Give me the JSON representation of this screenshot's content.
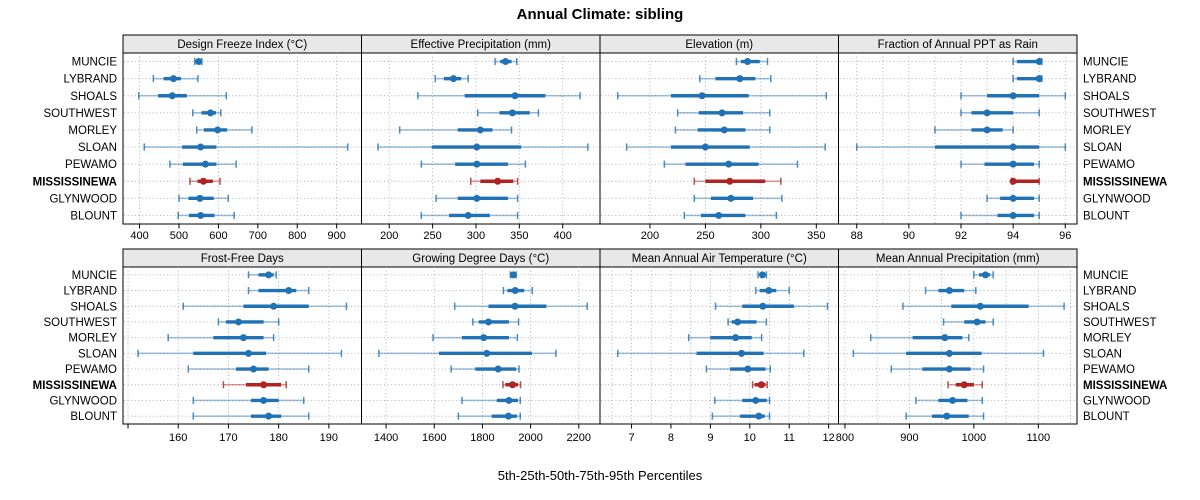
{
  "title": "Annual Climate: sibling",
  "caption": "5th-25th-50th-75th-95th Percentiles",
  "sites": [
    "MUNCIE",
    "LYBRAND",
    "SHOALS",
    "SOUTHWEST",
    "MORLEY",
    "SLOAN",
    "PEWAMO",
    "MISSISSINEWA",
    "GLYNWOOD",
    "BLOUNT"
  ],
  "highlight_site": "MISSISSINEWA",
  "colors": {
    "series_blue": "#2171b5",
    "series_blue_light": "rgba(33,113,181,0.42)",
    "highlight_red": "#b22222",
    "highlight_red_light": "rgba(178,34,34,0.45)",
    "strip_bg": "#e8e8e8",
    "panel_border": "#000000",
    "grid": "#a8a8a8"
  },
  "chart_data": {
    "type": "dotplot-percentiles",
    "percentiles": [
      5,
      25,
      50,
      75,
      95
    ],
    "grid_style": "dotted",
    "legend_position": "none",
    "panels": [
      {
        "id": "design-freeze-index",
        "title": "Design Freeze Index (°C)",
        "xlim": [
          358,
          963
        ],
        "ticks": [
          400,
          500,
          600,
          700,
          800,
          900
        ],
        "tick_labels": [
          "400",
          "500",
          "600",
          "700",
          "800",
          "900"
        ],
        "grid": [
          400,
          500,
          600,
          700,
          800,
          900
        ],
        "values": [
          [
            540,
            545,
            550,
            554,
            558
          ],
          [
            435,
            461,
            486,
            505,
            548
          ],
          [
            398,
            447,
            483,
            520,
            620
          ],
          [
            535,
            557,
            580,
            594,
            606
          ],
          [
            545,
            563,
            598,
            622,
            685
          ],
          [
            412,
            508,
            555,
            595,
            928
          ],
          [
            477,
            510,
            567,
            595,
            645
          ],
          [
            528,
            547,
            562,
            586,
            604
          ],
          [
            500,
            524,
            553,
            588,
            625
          ],
          [
            498,
            525,
            555,
            590,
            640
          ]
        ]
      },
      {
        "id": "effective-precipitation",
        "title": "Effective Precipitation (mm)",
        "xlim": [
          168,
          443
        ],
        "ticks": [
          200,
          250,
          300,
          350,
          400
        ],
        "tick_labels": [
          "200",
          "250",
          "300",
          "350",
          "400"
        ],
        "grid": [
          200,
          250,
          300,
          350,
          400
        ],
        "values": [
          [
            322,
            328,
            334,
            341,
            347
          ],
          [
            253,
            263,
            274,
            283,
            291
          ],
          [
            233,
            287,
            345,
            380,
            420
          ],
          [
            302,
            327,
            342,
            362,
            372
          ],
          [
            212,
            279,
            305,
            319,
            341
          ],
          [
            187,
            249,
            301,
            352,
            429
          ],
          [
            237,
            276,
            301,
            337,
            357
          ],
          [
            294,
            305,
            325,
            343,
            348
          ],
          [
            254,
            279,
            301,
            337,
            348
          ],
          [
            237,
            269,
            291,
            316,
            348
          ]
        ]
      },
      {
        "id": "elevation",
        "title": "Elevation (m)",
        "xlim": [
          155,
          370
        ],
        "ticks": [
          200,
          250,
          300,
          350
        ],
        "tick_labels": [
          "200",
          "250",
          "300",
          "350"
        ],
        "grid": [
          200,
          250,
          300,
          350
        ],
        "values": [
          [
            278,
            282,
            288,
            299,
            306
          ],
          [
            245,
            259,
            281,
            295,
            309
          ],
          [
            171,
            219,
            247,
            289,
            359
          ],
          [
            225,
            244,
            265,
            284,
            308
          ],
          [
            223,
            243,
            267,
            286,
            308
          ],
          [
            179,
            219,
            250,
            290,
            358
          ],
          [
            213,
            232,
            271,
            298,
            333
          ],
          [
            240,
            250,
            272,
            304,
            318
          ],
          [
            240,
            255,
            273,
            293,
            319
          ],
          [
            231,
            246,
            262,
            286,
            314
          ]
        ]
      },
      {
        "id": "fraction-annual-ppt-as-rain",
        "title": "Fraction of Annual PPT as Rain",
        "xlim": [
          87.3,
          96.45
        ],
        "ticks": [
          88,
          90,
          92,
          94,
          96
        ],
        "tick_labels": [
          "88",
          "90",
          "92",
          "94",
          "96"
        ],
        "grid": [
          88,
          89,
          90,
          91,
          92,
          93,
          94,
          95,
          96
        ],
        "values": [
          [
            94,
            94.15,
            95,
            95,
            95.1
          ],
          [
            94,
            94.15,
            95,
            95,
            95.1
          ],
          [
            92,
            93,
            94,
            95,
            96
          ],
          [
            92,
            92.4,
            93,
            94,
            95
          ],
          [
            91,
            92.4,
            93,
            93.6,
            94
          ],
          [
            88,
            91,
            94,
            95,
            96
          ],
          [
            92,
            92.9,
            94,
            94.8,
            95
          ],
          [
            93.95,
            94,
            94,
            95,
            95
          ],
          [
            93,
            93.5,
            94,
            94.8,
            95
          ],
          [
            92,
            93.4,
            94,
            94.8,
            95
          ]
        ]
      },
      {
        "id": "frost-free-days",
        "title": "Frost-Free Days",
        "xlim": [
          149,
          196.5
        ],
        "ticks": [
          150,
          160,
          170,
          180,
          190
        ],
        "tick_labels": [
          "",
          "160",
          "170",
          "180",
          "190"
        ],
        "grid": [
          150,
          160,
          170,
          180,
          190
        ],
        "values": [
          [
            174,
            176,
            178,
            179,
            179.5
          ],
          [
            174,
            176,
            182,
            183.5,
            186
          ],
          [
            161,
            173,
            179,
            186,
            193.5
          ],
          [
            168,
            169.5,
            172,
            177,
            180
          ],
          [
            158,
            167,
            173,
            177,
            179
          ],
          [
            152,
            163,
            174,
            177.5,
            192.5
          ],
          [
            162,
            171.5,
            175,
            178,
            186
          ],
          [
            169,
            173.5,
            177,
            180.5,
            181.5
          ],
          [
            163,
            174.5,
            177,
            180,
            185
          ],
          [
            163,
            174.5,
            178,
            180.5,
            186
          ]
        ]
      },
      {
        "id": "growing-degree-days",
        "title": "Growing Degree Days (°C)",
        "xlim": [
          1298,
          2288
        ],
        "ticks": [
          1400,
          1600,
          1800,
          2000,
          2200
        ],
        "tick_labels": [
          "1400",
          "1600",
          "1800",
          "2000",
          "2200"
        ],
        "grid": [
          1400,
          1600,
          1800,
          2000,
          2200
        ],
        "values": [
          [
            1916,
            1922,
            1928,
            1934,
            1940
          ],
          [
            1887,
            1904,
            1936,
            1973,
            2007
          ],
          [
            1685,
            1825,
            1935,
            2065,
            2235
          ],
          [
            1760,
            1785,
            1825,
            1910,
            1950
          ],
          [
            1595,
            1715,
            1805,
            1910,
            1945
          ],
          [
            1370,
            1620,
            1818,
            2005,
            2105
          ],
          [
            1670,
            1770,
            1865,
            1940,
            1952
          ],
          [
            1885,
            1895,
            1925,
            1948,
            1958
          ],
          [
            1715,
            1860,
            1910,
            1947,
            1957
          ],
          [
            1700,
            1838,
            1908,
            1943,
            1957
          ]
        ]
      },
      {
        "id": "mean-annual-air-temperature",
        "title": "Mean Annual Air Temperature (°C)",
        "xlim": [
          6.2,
          12.25
        ],
        "ticks": [
          7,
          8,
          9,
          10,
          11,
          12
        ],
        "tick_labels": [
          "7",
          "8",
          "9",
          "10",
          "11",
          "12"
        ],
        "grid": [
          6.5,
          7,
          7.5,
          8,
          8.5,
          9,
          9.5,
          10,
          10.5,
          11,
          11.5,
          12
        ],
        "values": [
          [
            10.21,
            10.26,
            10.32,
            10.37,
            10.42
          ],
          [
            10.15,
            10.25,
            10.48,
            10.67,
            11.0
          ],
          [
            9.13,
            9.81,
            10.33,
            11.12,
            11.97
          ],
          [
            9.45,
            9.54,
            9.69,
            10.17,
            10.42
          ],
          [
            8.45,
            9.0,
            9.64,
            10.05,
            10.3
          ],
          [
            6.65,
            8.65,
            9.79,
            10.35,
            11.37
          ],
          [
            8.9,
            9.5,
            9.95,
            10.4,
            10.52
          ],
          [
            10.07,
            10.12,
            10.29,
            10.4,
            10.44
          ],
          [
            9.11,
            9.81,
            10.15,
            10.43,
            10.5
          ],
          [
            9.05,
            9.75,
            10.23,
            10.38,
            10.5
          ]
        ]
      },
      {
        "id": "mean-annual-precipitation",
        "title": "Mean Annual Precipitation (mm)",
        "xlim": [
          790,
          1160
        ],
        "ticks": [
          800,
          900,
          1000,
          1100
        ],
        "tick_labels": [
          "800",
          "900",
          "1000",
          "1100"
        ],
        "grid": [
          800,
          850,
          900,
          950,
          1000,
          1050,
          1100,
          1150
        ],
        "values": [
          [
            1000,
            1008,
            1018,
            1025,
            1030
          ],
          [
            925,
            945,
            962,
            985,
            1003
          ],
          [
            890,
            965,
            1010,
            1085,
            1140
          ],
          [
            953,
            985,
            1005,
            1018,
            1030
          ],
          [
            840,
            905,
            955,
            982,
            992
          ],
          [
            813,
            895,
            962,
            1012,
            1108
          ],
          [
            872,
            920,
            962,
            995,
            1015
          ],
          [
            960,
            972,
            985,
            1000,
            1013
          ],
          [
            910,
            945,
            967,
            990,
            1013
          ],
          [
            895,
            935,
            958,
            992,
            1015
          ]
        ]
      }
    ]
  }
}
